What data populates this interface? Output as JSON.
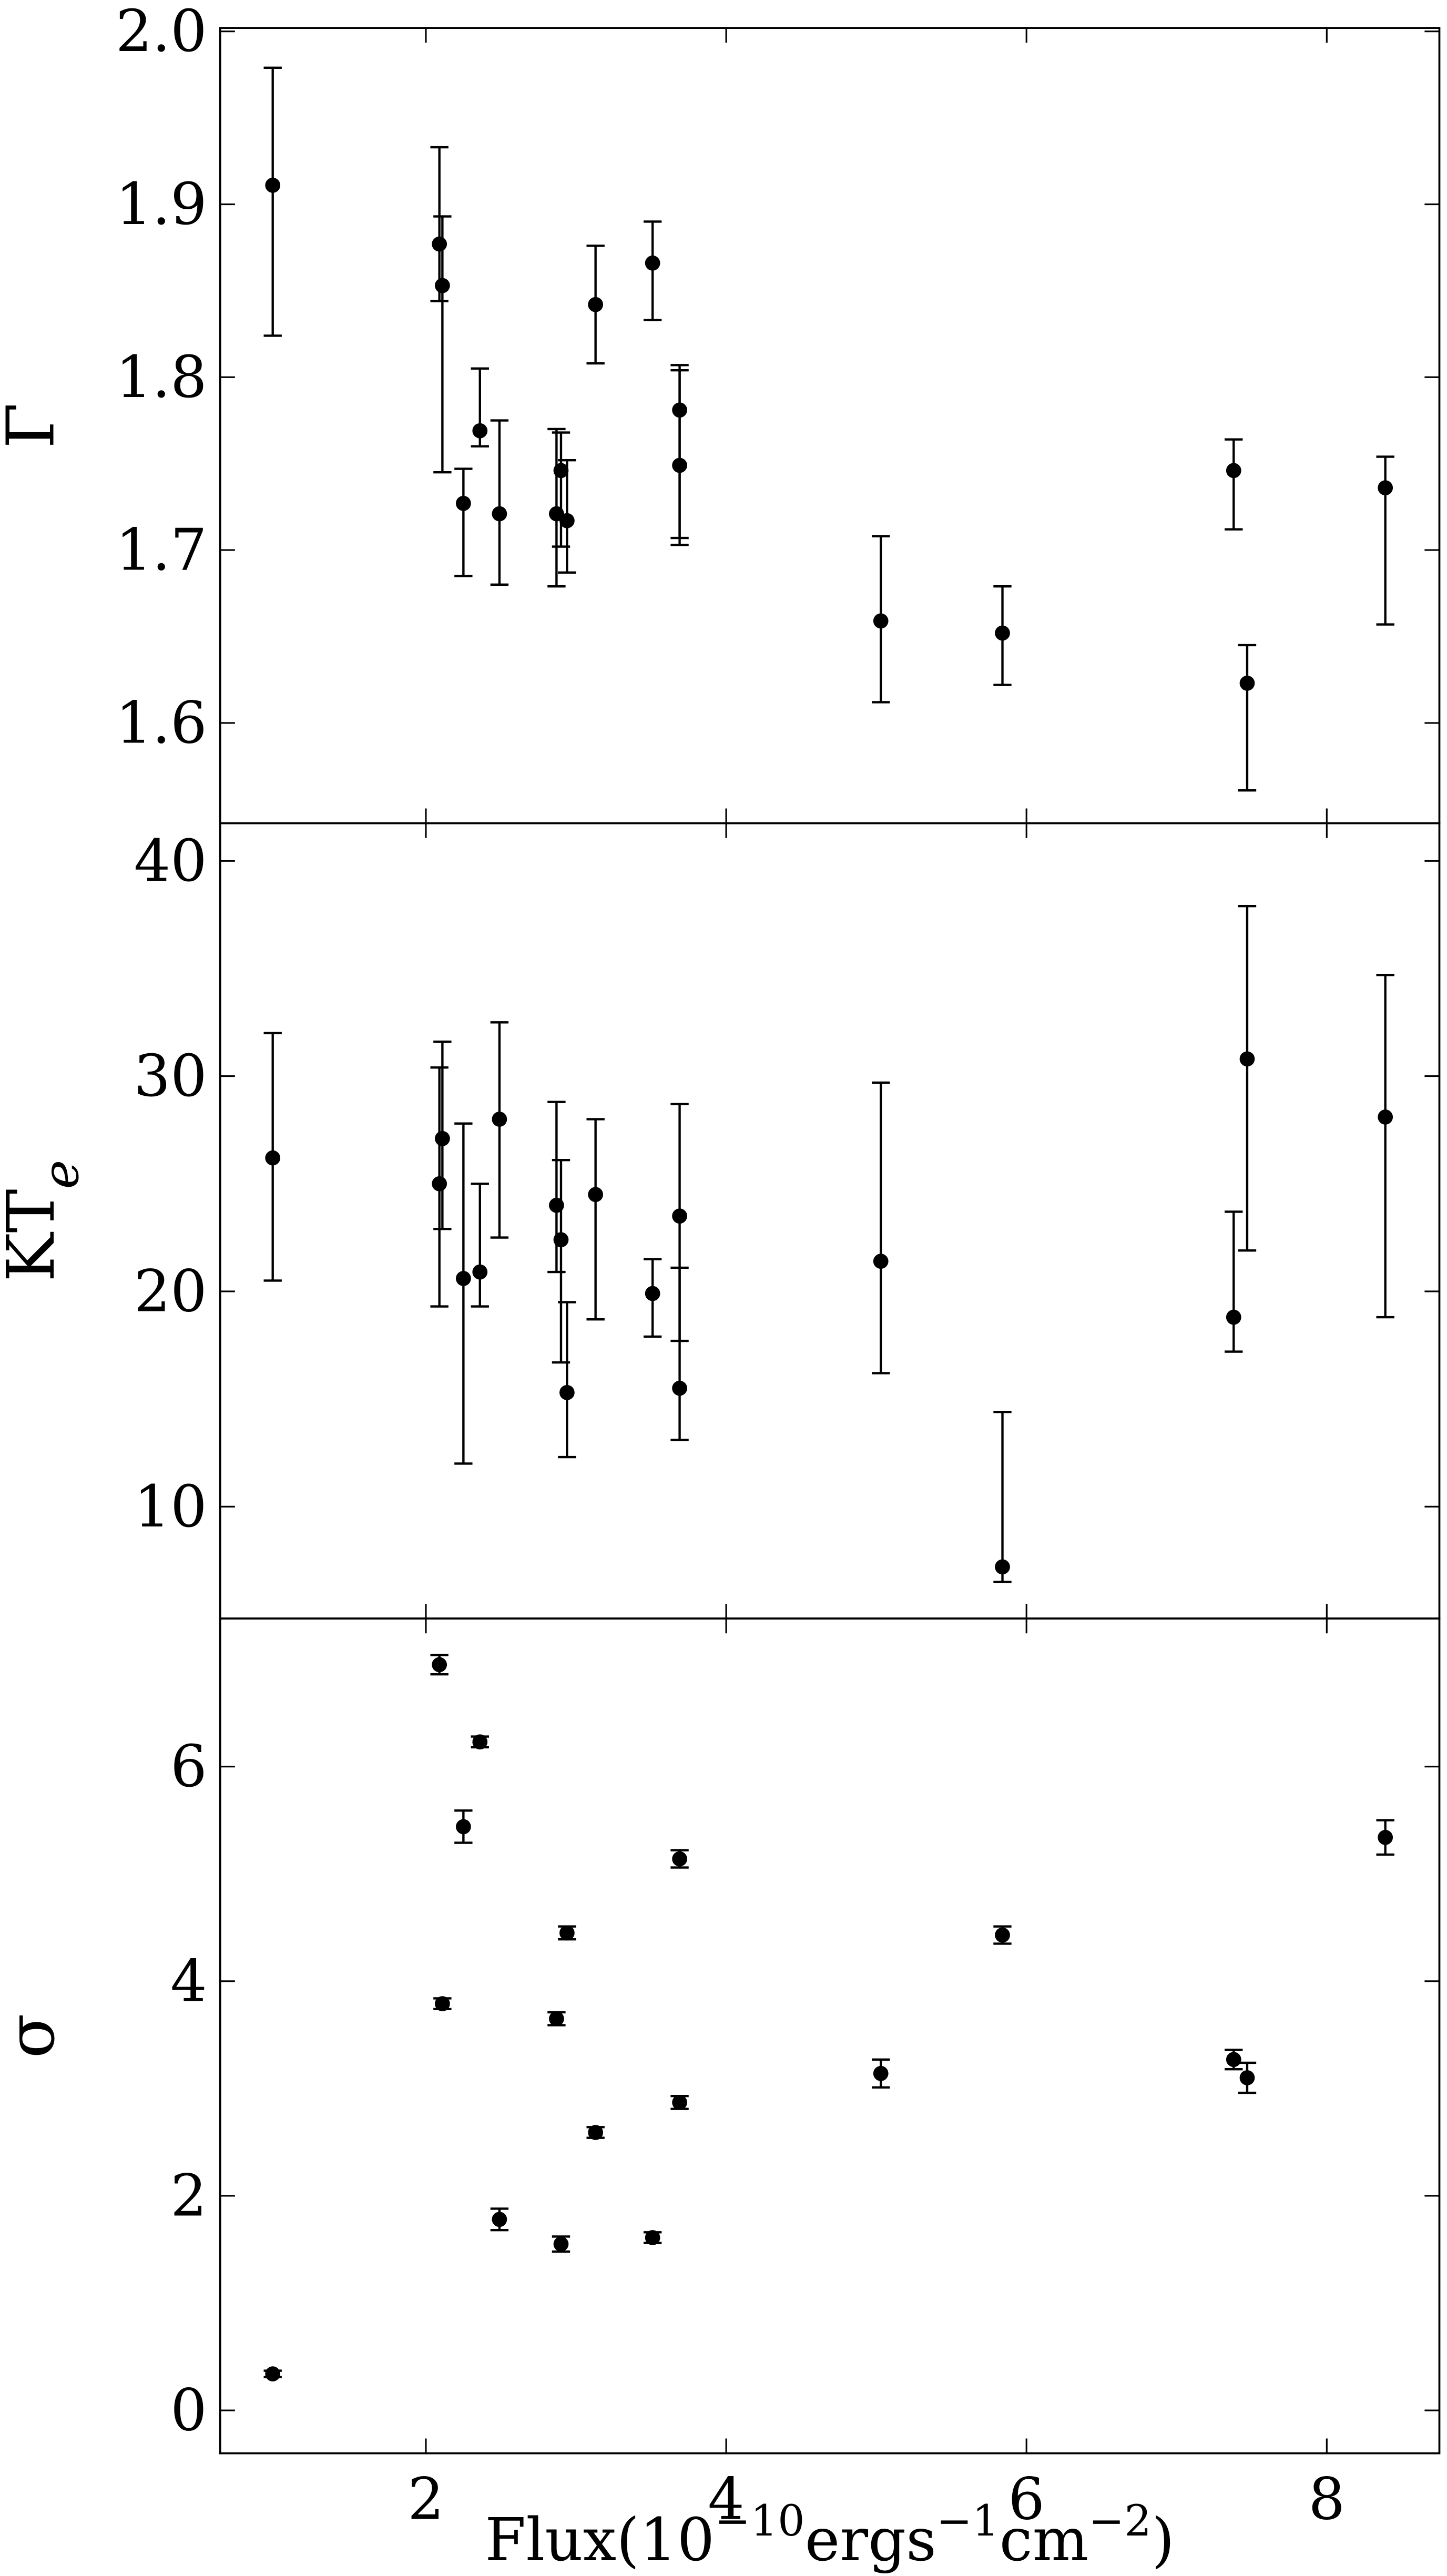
{
  "chart_data": [
    {
      "type": "scatter",
      "ylabel": "Γ",
      "color": "#000000",
      "x": [
        0.98,
        2.09,
        2.11,
        2.25,
        2.36,
        2.49,
        2.87,
        2.9,
        2.94,
        3.13,
        3.51,
        3.69,
        3.69,
        5.03,
        5.84,
        7.38,
        7.47,
        8.39
      ],
      "values": [
        1.911,
        1.877,
        1.853,
        1.727,
        1.769,
        1.721,
        1.721,
        1.746,
        1.717,
        1.842,
        1.866,
        1.781,
        1.749,
        1.659,
        1.652,
        1.746,
        1.623,
        1.736
      ],
      "lower": [
        1.824,
        1.844,
        1.745,
        1.685,
        1.76,
        1.68,
        1.679,
        1.702,
        1.687,
        1.808,
        1.833,
        1.707,
        1.703,
        1.612,
        1.622,
        1.712,
        1.561,
        1.657
      ],
      "upper": [
        1.979,
        1.933,
        1.893,
        1.747,
        1.805,
        1.775,
        1.77,
        1.768,
        1.752,
        1.876,
        1.89,
        1.807,
        1.804,
        1.708,
        1.679,
        1.764,
        1.645,
        1.754
      ],
      "xlim": [
        0.63,
        8.75
      ],
      "ylim": [
        1.542,
        2.002
      ],
      "yticks": [
        1.6,
        1.7,
        1.8,
        1.9,
        {
          "value": 2,
          "label": "2.0"
        }
      ]
    },
    {
      "type": "scatter",
      "ylabel": [
        "KT",
        "e"
      ],
      "color": "#000000",
      "x": [
        0.98,
        2.09,
        2.11,
        2.25,
        2.36,
        2.49,
        2.87,
        2.9,
        2.94,
        3.13,
        3.51,
        3.69,
        3.69,
        5.03,
        5.84,
        7.38,
        7.47,
        8.39
      ],
      "values": [
        26.2,
        25.0,
        27.1,
        20.6,
        20.9,
        28.0,
        24.0,
        22.4,
        15.3,
        24.5,
        19.9,
        23.5,
        15.5,
        21.4,
        7.2,
        18.8,
        30.8,
        28.1
      ],
      "lower": [
        20.5,
        19.3,
        22.9,
        12.0,
        19.3,
        22.5,
        20.9,
        16.7,
        12.3,
        18.7,
        17.9,
        17.7,
        13.1,
        16.2,
        6.5,
        17.2,
        21.9,
        18.8
      ],
      "upper": [
        32.0,
        30.4,
        31.6,
        27.8,
        25.0,
        32.5,
        28.8,
        26.1,
        19.5,
        28.0,
        21.5,
        28.7,
        21.1,
        29.7,
        14.4,
        23.7,
        37.9,
        34.7
      ],
      "xlim": [
        0.63,
        8.75
      ],
      "ylim": [
        4.8,
        41.75
      ],
      "yticks": [
        10,
        20,
        30,
        40
      ]
    },
    {
      "type": "scatter",
      "ylabel": "σ",
      "color": "#000000",
      "x": [
        0.98,
        2.09,
        2.11,
        2.25,
        2.36,
        2.49,
        2.87,
        2.9,
        2.94,
        3.13,
        3.51,
        3.69,
        3.69,
        5.03,
        5.84,
        7.38,
        7.47,
        8.39
      ],
      "values": [
        0.34,
        6.95,
        3.79,
        5.44,
        6.23,
        1.78,
        3.65,
        1.55,
        4.45,
        2.59,
        1.61,
        5.14,
        2.87,
        3.14,
        4.43,
        3.27,
        3.1,
        5.34
      ],
      "lower": [
        0.31,
        6.86,
        3.74,
        5.29,
        6.18,
        1.68,
        3.59,
        1.48,
        4.39,
        2.54,
        1.56,
        5.06,
        2.81,
        3.01,
        4.35,
        3.18,
        2.96,
        5.18
      ],
      "upper": [
        0.37,
        7.04,
        3.84,
        5.59,
        6.28,
        1.88,
        3.71,
        1.62,
        4.51,
        2.64,
        1.66,
        5.22,
        2.93,
        3.27,
        4.51,
        3.36,
        3.24,
        5.5
      ],
      "xlim": [
        0.63,
        8.75
      ],
      "ylim": [
        -0.4,
        7.38
      ],
      "yticks": [
        0,
        2,
        4,
        6
      ],
      "xticks": [
        2,
        4,
        6,
        8
      ],
      "xlabel": [
        "Flux(10",
        "−10",
        "ergs",
        "−1",
        "cm",
        "−2",
        ")"
      ]
    }
  ]
}
